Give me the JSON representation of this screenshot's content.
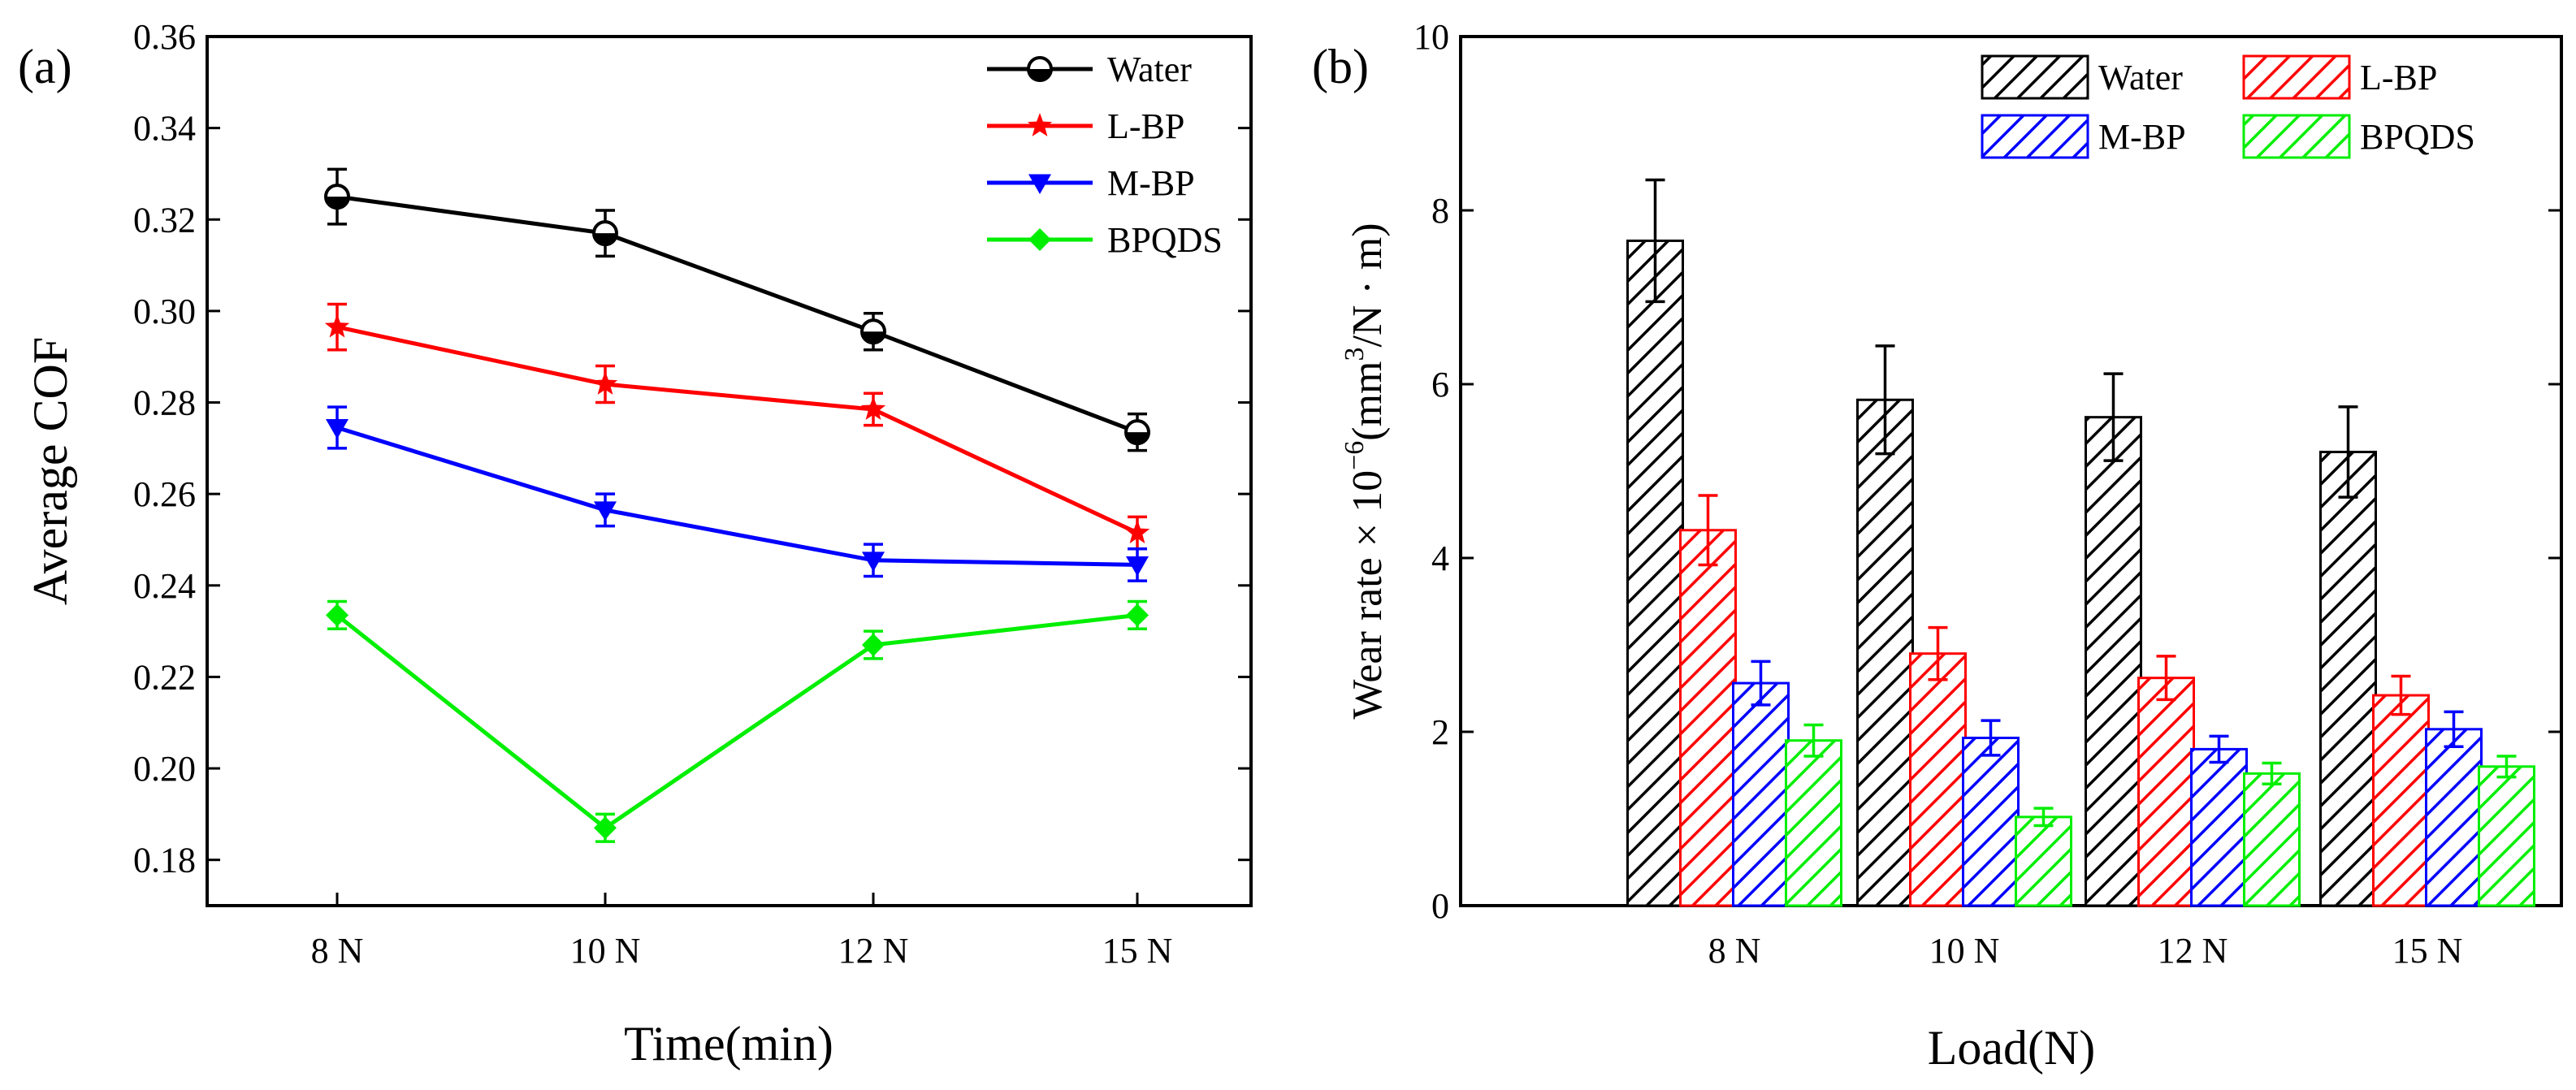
{
  "chart_data": [
    {
      "type": "line",
      "panel_label": "(a)",
      "title": "",
      "xlabel": "Time(min)",
      "ylabel": "Average COF",
      "categories": [
        "8 N",
        "10 N",
        "12 N",
        "15 N"
      ],
      "ylim": [
        0.17,
        0.36
      ],
      "yticks": [
        "0.18",
        "0.20",
        "0.22",
        "0.24",
        "0.26",
        "0.28",
        "0.30",
        "0.32",
        "0.34",
        "0.36"
      ],
      "legend_position": "top-right",
      "series": [
        {
          "name": "Water",
          "color": "#000000",
          "marker": "circle",
          "values": [
            0.325,
            0.317,
            0.2955,
            0.2735
          ],
          "errors": [
            0.006,
            0.005,
            0.004,
            0.004
          ]
        },
        {
          "name": "L-BP",
          "color": "#ff0000",
          "marker": "star",
          "values": [
            0.2965,
            0.284,
            0.2785,
            0.2515
          ],
          "errors": [
            0.005,
            0.004,
            0.0035,
            0.0035
          ]
        },
        {
          "name": "M-BP",
          "color": "#0000ff",
          "marker": "triangle-down",
          "values": [
            0.2745,
            0.2565,
            0.2455,
            0.2445
          ],
          "errors": [
            0.0045,
            0.0035,
            0.0035,
            0.0035
          ]
        },
        {
          "name": "BPQDS",
          "color": "#00ee00",
          "marker": "diamond",
          "values": [
            0.2335,
            0.187,
            0.227,
            0.2335
          ],
          "errors": [
            0.003,
            0.003,
            0.003,
            0.003
          ]
        }
      ]
    },
    {
      "type": "bar",
      "panel_label": "(b)",
      "title": "",
      "xlabel": "Load(N)",
      "ylabel_prefix": "Wear rate × 10",
      "ylabel_exp1": "−6",
      "ylabel_mid": "(mm",
      "ylabel_exp2": "3",
      "ylabel_suffix": "/N · m)",
      "categories": [
        "8 N",
        "10 N",
        "12 N",
        "15 N"
      ],
      "ylim": [
        0,
        10
      ],
      "yticks": [
        "0",
        "2",
        "4",
        "6",
        "8",
        "10"
      ],
      "legend_position": "top-right",
      "bar_fill": "diagonal-hatch",
      "series": [
        {
          "name": "Water",
          "color": "#000000",
          "values": [
            7.65,
            5.82,
            5.62,
            5.22
          ],
          "errors": [
            0.7,
            0.62,
            0.5,
            0.52
          ]
        },
        {
          "name": "L-BP",
          "color": "#ff0000",
          "values": [
            4.32,
            2.9,
            2.62,
            2.42
          ],
          "errors": [
            0.4,
            0.3,
            0.25,
            0.22
          ]
        },
        {
          "name": "M-BP",
          "color": "#0000ff",
          "values": [
            2.56,
            1.93,
            1.8,
            2.03
          ],
          "errors": [
            0.25,
            0.2,
            0.15,
            0.2
          ]
        },
        {
          "name": "BPQDS",
          "color": "#00ee00",
          "values": [
            1.9,
            1.02,
            1.52,
            1.6
          ],
          "errors": [
            0.18,
            0.1,
            0.12,
            0.12
          ]
        }
      ]
    }
  ]
}
